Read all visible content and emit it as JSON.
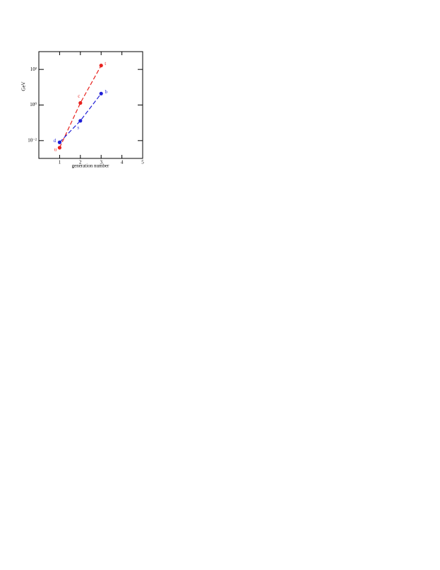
{
  "chart_data": {
    "type": "scatter",
    "x_label": "generation number",
    "y_label": "GeV",
    "log_y": true,
    "xlim": [
      0,
      5
    ],
    "xticks": [
      1,
      2,
      3,
      4,
      5
    ],
    "ylim": [
      0.001,
      1000
    ],
    "yticks": [
      {
        "value": 0.01,
        "label": "10⁻²"
      },
      {
        "value": 1,
        "label": "10⁰"
      },
      {
        "value": 100,
        "label": "10²"
      }
    ],
    "series": [
      {
        "color": "#e8221e",
        "x": [
          1,
          2,
          3
        ],
        "values": [
          0.004,
          1.3,
          166
        ],
        "labels": [
          "u",
          "c",
          "t"
        ]
      },
      {
        "color": "#1f1fd6",
        "x": [
          1,
          2,
          3
        ],
        "values": [
          0.008,
          0.13,
          4.4
        ],
        "labels": [
          "d",
          "s",
          "b"
        ]
      }
    ]
  }
}
